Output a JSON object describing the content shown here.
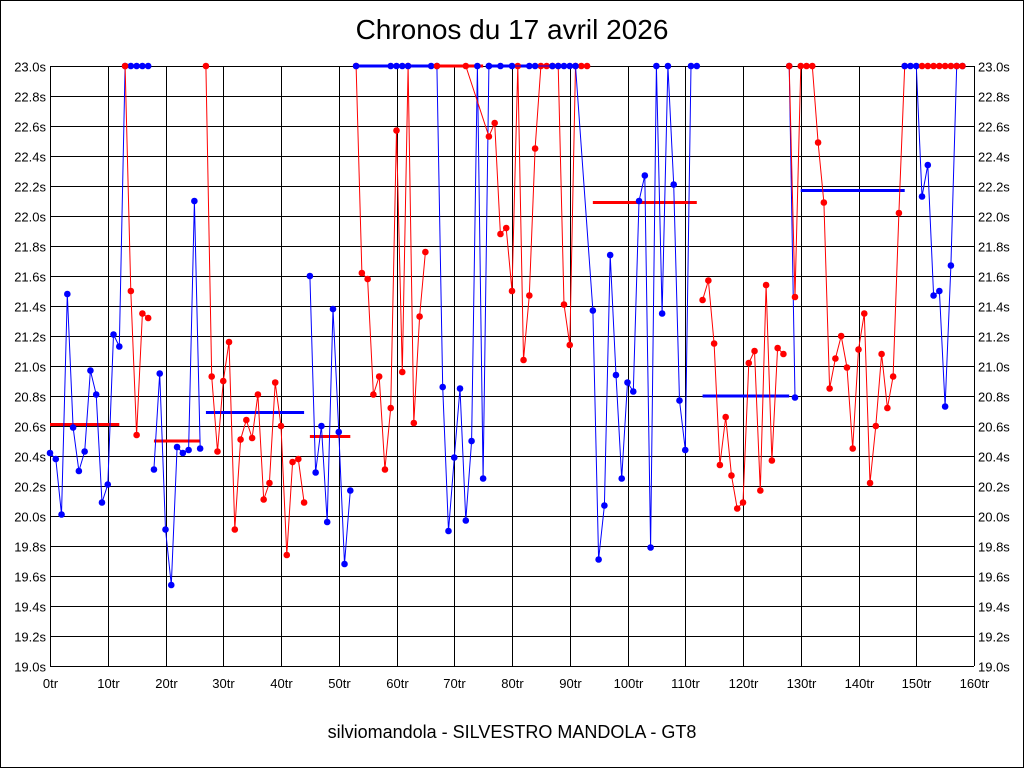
{
  "chart_data": {
    "type": "line",
    "title": "Chronos du 17 avril 2026",
    "footer": "silviomandola - SILVESTRO MANDOLA - GT8",
    "xlim": [
      0,
      160
    ],
    "ylim": [
      19.0,
      23.0
    ],
    "grid": true,
    "legend": "none",
    "x_ticks": [
      "0tr",
      "10tr",
      "20tr",
      "30tr",
      "40tr",
      "50tr",
      "60tr",
      "70tr",
      "80tr",
      "90tr",
      "100tr",
      "110tr",
      "120tr",
      "130tr",
      "140tr",
      "150tr",
      "160tr"
    ],
    "y_ticks": [
      "19.0s",
      "19.2s",
      "19.4s",
      "19.6s",
      "19.8s",
      "20.0s",
      "20.2s",
      "20.4s",
      "20.6s",
      "20.8s",
      "21.0s",
      "21.2s",
      "21.4s",
      "21.6s",
      "21.8s",
      "22.0s",
      "22.2s",
      "22.4s",
      "22.6s",
      "22.8s",
      "23.0s"
    ],
    "colors": {
      "blue": "#0000ff",
      "red": "#ff0000"
    },
    "series": [
      {
        "color": "blue",
        "x": [
          0,
          1,
          2,
          3,
          4,
          5,
          6,
          7,
          8,
          9,
          10,
          11,
          12,
          13,
          14,
          15,
          16,
          17
        ],
        "y": [
          20.42,
          20.38,
          20.01,
          21.48,
          20.59,
          20.3,
          20.43,
          20.97,
          20.81,
          20.09,
          20.21,
          21.21,
          21.13,
          23.0,
          23.0,
          23.0,
          23.0,
          23.0
        ]
      },
      {
        "color": "red",
        "x": [
          13,
          14,
          15,
          16,
          17
        ],
        "y": [
          23.0,
          21.5,
          20.54,
          21.35,
          21.32
        ]
      },
      {
        "color": "blue",
        "x": [
          18,
          19,
          20,
          21,
          22,
          23,
          24,
          25,
          26
        ],
        "y": [
          20.31,
          20.95,
          19.91,
          19.54,
          20.46,
          20.42,
          20.44,
          22.1,
          20.45
        ]
      },
      {
        "color": "red",
        "x": [
          27,
          28,
          29,
          30,
          31,
          32,
          33,
          34,
          35,
          36,
          37,
          38,
          39,
          40,
          41,
          42,
          43,
          44
        ],
        "y": [
          23.0,
          20.93,
          20.43,
          20.9,
          21.16,
          19.91,
          20.51,
          20.64,
          20.52,
          20.81,
          20.11,
          20.22,
          20.89,
          20.6,
          19.74,
          20.36,
          20.38,
          20.09
        ]
      },
      {
        "color": "blue",
        "x": [
          45,
          46,
          47,
          48,
          49,
          50,
          51,
          52
        ],
        "y": [
          21.6,
          20.29,
          20.6,
          19.96,
          21.38,
          20.56,
          19.68,
          20.17
        ]
      },
      {
        "color": "red",
        "x": [
          53,
          54,
          55,
          56,
          57,
          58,
          59,
          60,
          61,
          62,
          63,
          64,
          65
        ],
        "y": [
          23.0,
          21.62,
          21.58,
          20.81,
          20.93,
          20.31,
          20.72,
          22.57,
          20.96,
          23.0,
          20.62,
          21.33,
          21.76
        ]
      },
      {
        "color": "blue",
        "x": [
          53,
          59,
          60,
          61,
          62,
          66,
          67,
          68,
          69,
          70,
          71,
          72,
          73,
          74,
          75,
          76
        ],
        "y": [
          23.0,
          23.0,
          23.0,
          23.0,
          23.0,
          23.0,
          23.0,
          20.86,
          19.9,
          20.39,
          20.85,
          19.97,
          20.5,
          23.0,
          20.25,
          23.0
        ]
      },
      {
        "color": "red",
        "x": [
          67,
          72,
          76,
          77,
          78,
          79,
          80,
          81,
          82,
          83,
          84,
          85,
          86,
          87,
          88,
          89,
          90,
          91,
          92,
          93
        ],
        "y": [
          23.0,
          23.0,
          22.53,
          22.62,
          21.88,
          21.92,
          21.5,
          23.0,
          21.04,
          21.47,
          22.45,
          23.0,
          23.0,
          23.0,
          23.0,
          21.41,
          21.14,
          23.0,
          23.0,
          23.0
        ]
      },
      {
        "color": "blue",
        "x": [
          76,
          78,
          80,
          83,
          84,
          87,
          88,
          89,
          90,
          91,
          94,
          95,
          96,
          97,
          98,
          99,
          100,
          101,
          102,
          103,
          104,
          105,
          106,
          107,
          108,
          109,
          110,
          111,
          112
        ],
        "y": [
          23.0,
          23.0,
          23.0,
          23.0,
          23.0,
          23.0,
          23.0,
          23.0,
          23.0,
          23.0,
          21.37,
          19.71,
          20.07,
          21.74,
          20.94,
          20.25,
          20.89,
          20.83,
          22.1,
          22.27,
          19.79,
          23.0,
          21.35,
          23.0,
          22.21,
          20.77,
          20.44,
          23.0,
          23.0
        ]
      },
      {
        "color": "red",
        "x": [
          113,
          114,
          115,
          116,
          117,
          118,
          119,
          120,
          121,
          122,
          123,
          124,
          125,
          126,
          127
        ],
        "y": [
          21.44,
          21.57,
          21.15,
          20.34,
          20.66,
          20.27,
          20.05,
          20.09,
          21.02,
          21.1,
          20.17,
          21.54,
          20.37,
          21.12,
          21.08
        ]
      },
      {
        "color": "blue",
        "x": [
          128,
          129
        ],
        "y": [
          23.0,
          20.79
        ]
      },
      {
        "color": "red",
        "x": [
          128,
          129,
          130,
          131,
          132,
          133,
          134,
          135,
          136,
          137,
          138,
          139,
          140,
          141,
          142,
          143,
          144,
          145,
          146,
          147,
          148
        ],
        "y": [
          23.0,
          21.46,
          23.0,
          23.0,
          23.0,
          22.49,
          22.09,
          20.85,
          21.05,
          21.2,
          20.99,
          20.45,
          21.11,
          21.35,
          20.22,
          20.6,
          21.08,
          20.72,
          20.93,
          22.02,
          23.0
        ]
      },
      {
        "color": "blue",
        "x": [
          148,
          149,
          150,
          151,
          152,
          153,
          154,
          155,
          156,
          157,
          158
        ],
        "y": [
          23.0,
          23.0,
          23.0,
          22.13,
          22.34,
          21.47,
          21.5,
          20.73,
          21.67,
          23.0,
          23.0
        ]
      },
      {
        "color": "red",
        "x": [
          151,
          152,
          153,
          154,
          155,
          156,
          157,
          158
        ],
        "y": [
          23.0,
          23.0,
          23.0,
          23.0,
          23.0,
          23.0,
          23.0,
          23.0
        ]
      }
    ],
    "segments": [
      {
        "color": "red",
        "x1": 0,
        "x2": 12,
        "y": 20.61
      },
      {
        "color": "blue",
        "x1": 13,
        "x2": 17,
        "y": 23.0
      },
      {
        "color": "red",
        "x1": 18,
        "x2": 26,
        "y": 20.5
      },
      {
        "color": "blue",
        "x1": 27,
        "x2": 44,
        "y": 20.69
      },
      {
        "color": "red",
        "x1": 45,
        "x2": 52,
        "y": 20.53
      },
      {
        "color": "blue",
        "x1": 53,
        "x2": 66,
        "y": 23.0
      },
      {
        "color": "red",
        "x1": 67,
        "x2": 75,
        "y": 23.0
      },
      {
        "color": "blue",
        "x1": 76,
        "x2": 93,
        "y": 23.0
      },
      {
        "color": "red",
        "x1": 94,
        "x2": 112,
        "y": 22.09
      },
      {
        "color": "blue",
        "x1": 113,
        "x2": 128,
        "y": 20.8
      },
      {
        "color": "blue",
        "x1": 130,
        "x2": 148,
        "y": 22.17
      },
      {
        "color": "red",
        "x1": 151,
        "x2": 158,
        "y": 23.0
      }
    ]
  }
}
